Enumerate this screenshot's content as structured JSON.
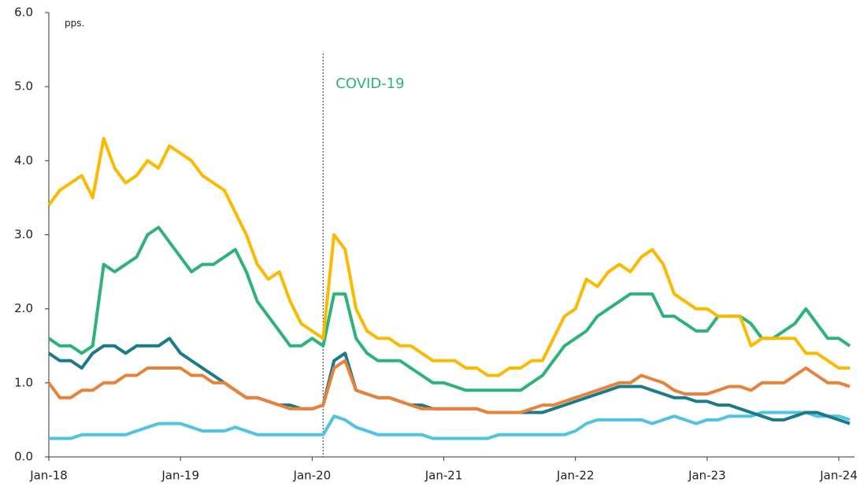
{
  "chart_data": {
    "type": "line",
    "y_label": "pps.",
    "annotation": {
      "text": "COVID-19",
      "x": "2020-02",
      "color": "#2db37a"
    },
    "x": [
      "2018-01",
      "2018-02",
      "2018-03",
      "2018-04",
      "2018-05",
      "2018-06",
      "2018-07",
      "2018-08",
      "2018-09",
      "2018-10",
      "2018-11",
      "2018-12",
      "2019-01",
      "2019-02",
      "2019-03",
      "2019-04",
      "2019-05",
      "2019-06",
      "2019-07",
      "2019-08",
      "2019-09",
      "2019-10",
      "2019-11",
      "2019-12",
      "2020-01",
      "2020-02",
      "2020-03",
      "2020-04",
      "2020-05",
      "2020-06",
      "2020-07",
      "2020-08",
      "2020-09",
      "2020-10",
      "2020-11",
      "2020-12",
      "2021-01",
      "2021-02",
      "2021-03",
      "2021-04",
      "2021-05",
      "2021-06",
      "2021-07",
      "2021-08",
      "2021-09",
      "2021-10",
      "2021-11",
      "2021-12",
      "2022-01",
      "2022-02",
      "2022-03",
      "2022-04",
      "2022-05",
      "2022-06",
      "2022-07",
      "2022-08",
      "2022-09",
      "2022-10",
      "2022-11",
      "2022-12",
      "2023-01",
      "2023-02",
      "2023-03",
      "2023-04",
      "2023-05",
      "2023-06",
      "2023-07",
      "2023-08",
      "2023-09",
      "2023-10",
      "2023-11",
      "2023-12",
      "2024-01",
      "2024-02"
    ],
    "series": [
      {
        "color": "#4fc3df",
        "values": [
          0.25,
          0.25,
          0.25,
          0.3,
          0.3,
          0.3,
          0.3,
          0.3,
          0.35,
          0.4,
          0.45,
          0.45,
          0.45,
          0.4,
          0.35,
          0.35,
          0.35,
          0.4,
          0.35,
          0.3,
          0.3,
          0.3,
          0.3,
          0.3,
          0.3,
          0.3,
          0.55,
          0.5,
          0.4,
          0.35,
          0.3,
          0.3,
          0.3,
          0.3,
          0.3,
          0.25,
          0.25,
          0.25,
          0.25,
          0.25,
          0.25,
          0.3,
          0.3,
          0.3,
          0.3,
          0.3,
          0.3,
          0.3,
          0.35,
          0.45,
          0.5,
          0.5,
          0.5,
          0.5,
          0.5,
          0.45,
          0.5,
          0.55,
          0.5,
          0.45,
          0.5,
          0.5,
          0.55,
          0.55,
          0.55,
          0.6,
          0.6,
          0.6,
          0.6,
          0.6,
          0.55,
          0.55,
          0.55,
          0.5
        ]
      },
      {
        "color": "#1b7a8a",
        "values": [
          1.4,
          1.3,
          1.3,
          1.2,
          1.4,
          1.5,
          1.5,
          1.4,
          1.5,
          1.5,
          1.5,
          1.6,
          1.4,
          1.3,
          1.2,
          1.1,
          1.0,
          0.9,
          0.8,
          0.8,
          0.75,
          0.7,
          0.7,
          0.65,
          0.65,
          0.7,
          1.3,
          1.4,
          0.9,
          0.85,
          0.8,
          0.8,
          0.75,
          0.7,
          0.7,
          0.65,
          0.65,
          0.65,
          0.65,
          0.65,
          0.6,
          0.6,
          0.6,
          0.6,
          0.6,
          0.6,
          0.65,
          0.7,
          0.75,
          0.8,
          0.85,
          0.9,
          0.95,
          0.95,
          0.95,
          0.9,
          0.85,
          0.8,
          0.8,
          0.75,
          0.75,
          0.7,
          0.7,
          0.65,
          0.6,
          0.55,
          0.5,
          0.5,
          0.55,
          0.6,
          0.6,
          0.55,
          0.5,
          0.45
        ]
      },
      {
        "color": "#e8823a",
        "values": [
          1.0,
          0.8,
          0.8,
          0.9,
          0.9,
          1.0,
          1.0,
          1.1,
          1.1,
          1.2,
          1.2,
          1.2,
          1.2,
          1.1,
          1.1,
          1.0,
          1.0,
          0.9,
          0.8,
          0.8,
          0.75,
          0.7,
          0.65,
          0.65,
          0.65,
          0.7,
          1.2,
          1.3,
          0.9,
          0.85,
          0.8,
          0.8,
          0.75,
          0.7,
          0.65,
          0.65,
          0.65,
          0.65,
          0.65,
          0.65,
          0.6,
          0.6,
          0.6,
          0.6,
          0.65,
          0.7,
          0.7,
          0.75,
          0.8,
          0.85,
          0.9,
          0.95,
          1.0,
          1.0,
          1.1,
          1.05,
          1.0,
          0.9,
          0.85,
          0.85,
          0.85,
          0.9,
          0.95,
          0.95,
          0.9,
          1.0,
          1.0,
          1.0,
          1.1,
          1.2,
          1.1,
          1.0,
          1.0,
          0.95
        ]
      },
      {
        "color": "#2db37a",
        "values": [
          1.6,
          1.5,
          1.5,
          1.4,
          1.5,
          2.6,
          2.5,
          2.6,
          2.7,
          3.0,
          3.1,
          2.9,
          2.7,
          2.5,
          2.6,
          2.6,
          2.7,
          2.8,
          2.5,
          2.1,
          1.9,
          1.7,
          1.5,
          1.5,
          1.6,
          1.5,
          2.2,
          2.2,
          1.6,
          1.4,
          1.3,
          1.3,
          1.3,
          1.2,
          1.1,
          1.0,
          1.0,
          0.95,
          0.9,
          0.9,
          0.9,
          0.9,
          0.9,
          0.9,
          1.0,
          1.1,
          1.3,
          1.5,
          1.6,
          1.7,
          1.9,
          2.0,
          2.1,
          2.2,
          2.2,
          2.2,
          1.9,
          1.9,
          1.8,
          1.7,
          1.7,
          1.9,
          1.9,
          1.9,
          1.8,
          1.6,
          1.6,
          1.7,
          1.8,
          2.0,
          1.8,
          1.6,
          1.6,
          1.5
        ]
      },
      {
        "color": "#fbb900",
        "values": [
          3.4,
          3.6,
          3.7,
          3.8,
          3.5,
          4.3,
          3.9,
          3.7,
          3.8,
          4.0,
          3.9,
          4.2,
          4.1,
          4.0,
          3.8,
          3.7,
          3.6,
          3.3,
          3.0,
          2.6,
          2.4,
          2.5,
          2.1,
          1.8,
          1.7,
          1.6,
          3.0,
          2.8,
          2.0,
          1.7,
          1.6,
          1.6,
          1.5,
          1.5,
          1.4,
          1.3,
          1.3,
          1.3,
          1.2,
          1.2,
          1.1,
          1.1,
          1.2,
          1.2,
          1.3,
          1.3,
          1.6,
          1.9,
          2.0,
          2.4,
          2.3,
          2.5,
          2.6,
          2.5,
          2.7,
          2.8,
          2.6,
          2.2,
          2.1,
          2.0,
          2.0,
          1.9,
          1.9,
          1.9,
          1.5,
          1.6,
          1.6,
          1.6,
          1.6,
          1.4,
          1.4,
          1.3,
          1.2,
          1.2
        ]
      }
    ],
    "xlim": [
      "2018-01",
      "2024-02"
    ],
    "xticks": [
      {
        "value": "2018-01",
        "label": "Jan-18"
      },
      {
        "value": "2019-01",
        "label": "Jan-19"
      },
      {
        "value": "2020-01",
        "label": "Jan-20"
      },
      {
        "value": "2021-01",
        "label": "Jan-21"
      },
      {
        "value": "2022-01",
        "label": "Jan-22"
      },
      {
        "value": "2023-01",
        "label": "Jan-23"
      },
      {
        "value": "2024-01",
        "label": "Jan-24"
      }
    ],
    "ylim": [
      0,
      6
    ],
    "yticks": [
      {
        "value": 0,
        "label": "0.0"
      },
      {
        "value": 1,
        "label": "1.0"
      },
      {
        "value": 2,
        "label": "2.0"
      },
      {
        "value": 3,
        "label": "3.0"
      },
      {
        "value": 4,
        "label": "4.0"
      },
      {
        "value": 5,
        "label": "5.0"
      },
      {
        "value": 6,
        "label": "6.0"
      }
    ]
  }
}
